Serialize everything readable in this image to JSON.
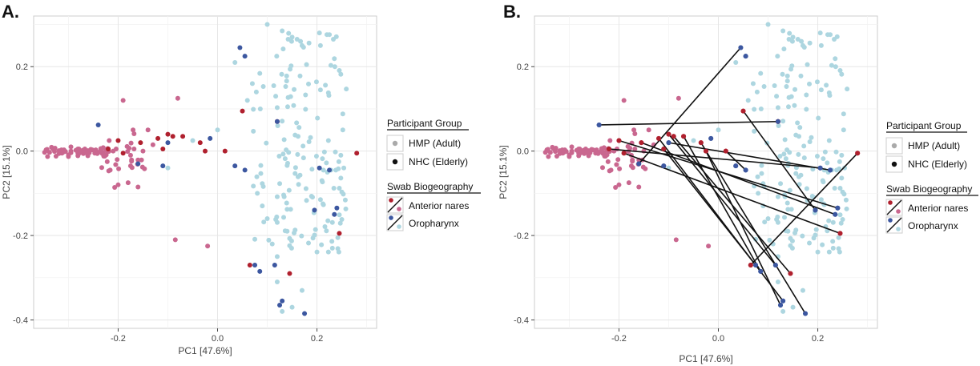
{
  "chart_data": [
    {
      "panel_label": "A.",
      "type": "scatter",
      "xlabel": "PC1 [47.6%]",
      "ylabel": "PC2 [15.1%]",
      "xlim": [
        -0.37,
        0.32
      ],
      "ylim": [
        -0.42,
        0.32
      ],
      "xticks": [
        -0.2,
        0.0,
        0.2
      ],
      "xtick_labels": [
        "-0.2",
        "0.0",
        "0.2"
      ],
      "yticks": [
        0.2,
        0.0,
        -0.2,
        -0.4
      ],
      "ytick_labels": [
        "0.2",
        "0.0",
        "-0.2",
        "-0.4"
      ],
      "grid": true,
      "series": [
        {
          "name": "HMP Anterior nares",
          "color": "#c9678f",
          "points": []
        },
        {
          "name": "HMP Oropharynx",
          "color": "#add6e0",
          "points": []
        },
        {
          "name": "NHC Anterior nares",
          "color": "#b0202e",
          "points": [
            [
              -0.22,
              0.005
            ],
            [
              -0.2,
              0.025
            ],
            [
              -0.19,
              -0.005
            ],
            [
              -0.155,
              0.02
            ],
            [
              -0.12,
              0.03
            ],
            [
              -0.11,
              0.005
            ],
            [
              -0.09,
              0.035
            ],
            [
              -0.07,
              0.035
            ],
            [
              -0.035,
              0.02
            ],
            [
              -0.025,
              0.0
            ],
            [
              -0.1,
              0.04
            ],
            [
              0.05,
              0.095
            ],
            [
              0.015,
              0.0
            ],
            [
              0.12,
              0.07
            ],
            [
              0.065,
              -0.27
            ],
            [
              0.145,
              -0.29
            ],
            [
              0.245,
              -0.195
            ],
            [
              0.28,
              -0.005
            ]
          ]
        },
        {
          "name": "NHC Oropharynx",
          "color": "#3c57a0",
          "points": [
            [
              -0.24,
              0.062
            ],
            [
              -0.16,
              -0.03
            ],
            [
              -0.11,
              -0.035
            ],
            [
              -0.1,
              0.02
            ],
            [
              -0.015,
              0.03
            ],
            [
              0.035,
              -0.035
            ],
            [
              0.055,
              -0.045
            ],
            [
              0.075,
              -0.27
            ],
            [
              0.085,
              -0.285
            ],
            [
              0.115,
              -0.27
            ],
            [
              0.13,
              -0.355
            ],
            [
              0.125,
              -0.365
            ],
            [
              0.175,
              -0.385
            ],
            [
              0.205,
              -0.04
            ],
            [
              0.225,
              -0.045
            ],
            [
              0.235,
              -0.15
            ],
            [
              0.24,
              -0.135
            ],
            [
              0.045,
              0.245
            ],
            [
              0.055,
              0.225
            ],
            [
              0.12,
              0.07
            ],
            [
              0.195,
              -0.14
            ]
          ]
        }
      ],
      "lines": []
    },
    {
      "panel_label": "B.",
      "type": "scatter",
      "xlabel": "PC1 [47.6%]",
      "ylabel": "PC2 [15.1%]",
      "xlim": [
        -0.37,
        0.32
      ],
      "ylim": [
        -0.42,
        0.32
      ],
      "xticks": [
        -0.2,
        0.0,
        0.2
      ],
      "xtick_labels": [
        "-0.2",
        "0.0",
        "0.2"
      ],
      "yticks": [
        0.2,
        0.0,
        -0.2,
        -0.4
      ],
      "ytick_labels": [
        "0.2",
        "0.0",
        "-0.2",
        "-0.4"
      ],
      "grid": true,
      "series": [
        {
          "name": "HMP Anterior nares",
          "color": "#c9678f",
          "points": []
        },
        {
          "name": "HMP Oropharynx",
          "color": "#add6e0",
          "points": []
        },
        {
          "name": "NHC Anterior nares",
          "color": "#b0202e",
          "points": [
            [
              -0.22,
              0.005
            ],
            [
              -0.2,
              0.025
            ],
            [
              -0.19,
              -0.005
            ],
            [
              -0.155,
              0.02
            ],
            [
              -0.12,
              0.03
            ],
            [
              -0.11,
              0.005
            ],
            [
              -0.09,
              0.035
            ],
            [
              -0.07,
              0.035
            ],
            [
              -0.035,
              0.02
            ],
            [
              -0.025,
              0.0
            ],
            [
              -0.1,
              0.04
            ],
            [
              0.05,
              0.095
            ],
            [
              0.015,
              0.0
            ],
            [
              0.12,
              0.07
            ],
            [
              0.065,
              -0.27
            ],
            [
              0.145,
              -0.29
            ],
            [
              0.245,
              -0.195
            ],
            [
              0.28,
              -0.005
            ]
          ]
        },
        {
          "name": "NHC Oropharynx",
          "color": "#3c57a0",
          "points": [
            [
              -0.24,
              0.062
            ],
            [
              -0.16,
              -0.03
            ],
            [
              -0.11,
              -0.035
            ],
            [
              -0.1,
              0.02
            ],
            [
              -0.015,
              0.03
            ],
            [
              0.035,
              -0.035
            ],
            [
              0.055,
              -0.045
            ],
            [
              0.075,
              -0.27
            ],
            [
              0.085,
              -0.285
            ],
            [
              0.115,
              -0.27
            ],
            [
              0.13,
              -0.355
            ],
            [
              0.125,
              -0.365
            ],
            [
              0.175,
              -0.385
            ],
            [
              0.205,
              -0.04
            ],
            [
              0.225,
              -0.045
            ],
            [
              0.235,
              -0.15
            ],
            [
              0.24,
              -0.135
            ],
            [
              0.045,
              0.245
            ],
            [
              0.055,
              0.225
            ],
            [
              0.12,
              0.07
            ],
            [
              0.195,
              -0.14
            ]
          ]
        }
      ],
      "lines": [
        [
          [
            -0.24,
            0.062
          ],
          [
            0.12,
            0.07
          ]
        ],
        [
          [
            -0.22,
            0.005
          ],
          [
            0.205,
            -0.04
          ]
        ],
        [
          [
            -0.2,
            0.025
          ],
          [
            0.24,
            -0.135
          ]
        ],
        [
          [
            -0.19,
            -0.005
          ],
          [
            0.245,
            -0.195
          ]
        ],
        [
          [
            -0.16,
            -0.03
          ],
          [
            0.045,
            0.245
          ]
        ],
        [
          [
            -0.155,
            0.02
          ],
          [
            0.235,
            -0.15
          ]
        ],
        [
          [
            -0.12,
            0.03
          ],
          [
            0.13,
            -0.355
          ]
        ],
        [
          [
            -0.11,
            0.005
          ],
          [
            0.075,
            -0.27
          ]
        ],
        [
          [
            -0.1,
            0.02
          ],
          [
            0.225,
            -0.045
          ]
        ],
        [
          [
            -0.09,
            0.035
          ],
          [
            0.145,
            -0.29
          ]
        ],
        [
          [
            -0.07,
            0.035
          ],
          [
            0.085,
            -0.285
          ]
        ],
        [
          [
            -0.035,
            0.02
          ],
          [
            0.175,
            -0.385
          ]
        ],
        [
          [
            -0.025,
            0.0
          ],
          [
            0.125,
            -0.365
          ]
        ],
        [
          [
            0.015,
            0.0
          ],
          [
            0.055,
            -0.045
          ]
        ],
        [
          [
            -0.1,
            0.04
          ],
          [
            0.115,
            -0.27
          ]
        ],
        [
          [
            0.05,
            0.095
          ],
          [
            0.195,
            -0.14
          ]
        ],
        [
          [
            0.065,
            -0.27
          ],
          [
            0.28,
            -0.005
          ]
        ]
      ]
    }
  ],
  "legend": {
    "group_title": "Participant Group",
    "group_items": [
      {
        "label": "HMP (Adult)",
        "color": "#aaaaaa"
      },
      {
        "label": "NHC (Elderly)",
        "color": "#111111"
      }
    ],
    "site_title": "Swab Biogeography",
    "site_items": [
      {
        "label": "Anterior nares",
        "colors": [
          "#b0202e",
          "#c9678f"
        ]
      },
      {
        "label": "Oropharynx",
        "colors": [
          "#3c57a0",
          "#add6e0"
        ]
      }
    ]
  }
}
